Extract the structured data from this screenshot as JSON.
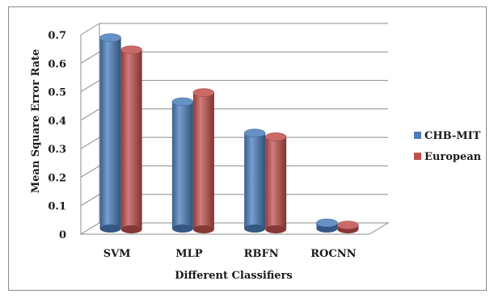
{
  "chart_data": {
    "type": "bar",
    "style": "3d-cylinder",
    "categories": [
      "SVM",
      "MLP",
      "RBFN",
      "ROCNN"
    ],
    "series": [
      {
        "name": "CHB-MIT",
        "values": [
          0.67,
          0.445,
          0.335,
          0.02
        ],
        "color": "#4a7ebb"
      },
      {
        "name": "European",
        "values": [
          0.63,
          0.48,
          0.325,
          0.015
        ],
        "color": "#c0504d"
      }
    ],
    "xlabel": "Different Classifiers",
    "ylabel": "Mean Square Error Rate",
    "ylim": [
      0,
      0.7
    ],
    "yticks": [
      "0",
      "0.1",
      "0.2",
      "0.3",
      "0.4",
      "0.5",
      "0.6",
      "0.7"
    ],
    "grid": true,
    "legend": "right"
  }
}
